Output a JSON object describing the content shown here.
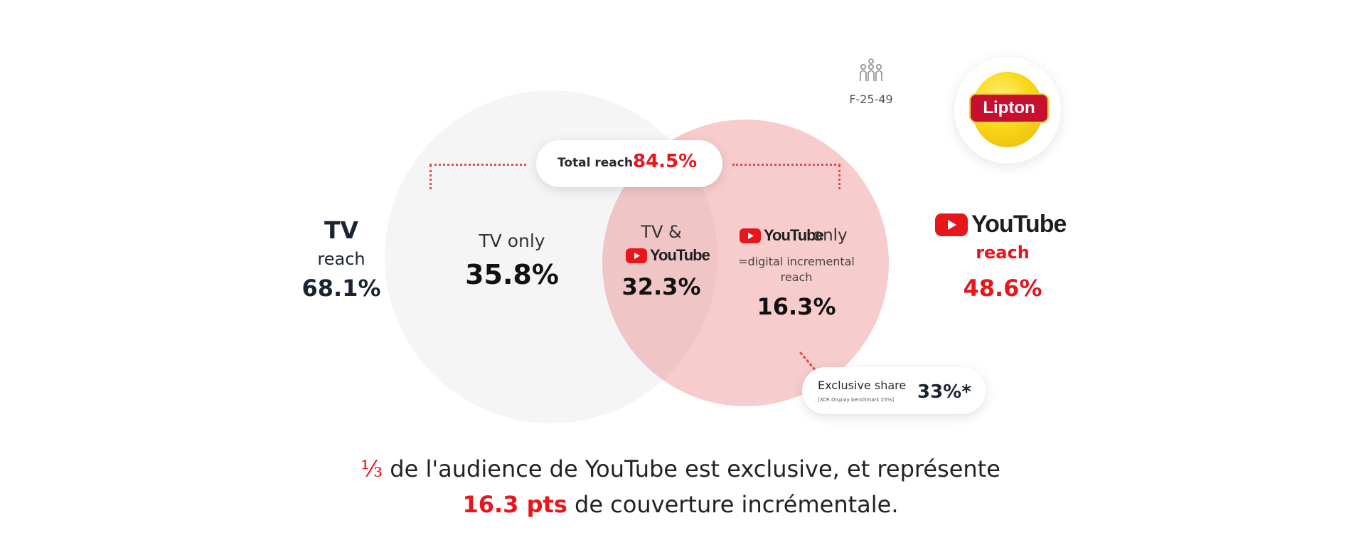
{
  "audience": {
    "label": "F-25-49"
  },
  "brand": {
    "name": "Lipton"
  },
  "total_reach": {
    "label": "Total reach",
    "value": "84.5%"
  },
  "tv_reach": {
    "title": "TV",
    "sub": "reach",
    "value": "68.1%"
  },
  "youtube_reach": {
    "logo_text": "YouTube",
    "sub": "reach",
    "value": "48.6%"
  },
  "tv_only": {
    "label": "TV only",
    "value": "35.8%"
  },
  "overlap": {
    "label": "TV &",
    "logo_text": "YouTube",
    "value": "32.3%"
  },
  "yt_only": {
    "logo_text": "YouTube",
    "label": "only",
    "note_line1": "=digital incremental",
    "note_line2": "reach",
    "value": "16.3%"
  },
  "exclusive": {
    "label": "Exclusive share",
    "benchmark": "[XCR Display benchmark 25%]",
    "value": "33%*"
  },
  "conclusion": {
    "fraction": "⅓",
    "line1": " de l'audience de YouTube est exclusive, et représente",
    "pts": "16.3 pts",
    "line2": " de couverture incrémentale",
    "period": "."
  },
  "colors": {
    "youtube_red": "#e8151b",
    "navy": "#1c2433",
    "tv_circle": "#f5f5f5",
    "yt_circle": "#f3c8c9",
    "dots": "#e34b4b"
  },
  "icons": [
    "people-group-icon",
    "youtube-play-icon",
    "lipton-logo"
  ]
}
